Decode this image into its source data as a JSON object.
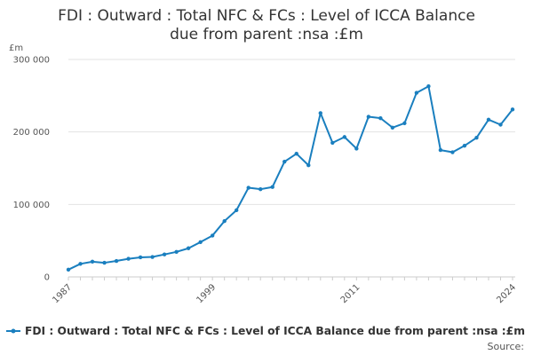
{
  "chart_data": {
    "type": "line",
    "title": "FDI : Outward : Total NFC & FCs : Level of ICCA Balance due from parent :nsa :£m",
    "title_lines": [
      "FDI : Outward : Total NFC & FCs : Level of ICCA Balance",
      "due from parent :nsa :£m"
    ],
    "ylabel": "£m",
    "xlabel": "",
    "ylim": [
      0,
      300000
    ],
    "y_ticks": [
      0,
      100000,
      200000,
      300000
    ],
    "y_tick_labels": [
      "0",
      "100 000",
      "200 000",
      "300 000"
    ],
    "xlim": [
      1987,
      2024
    ],
    "x_tick_labels": [
      "1987",
      "1999",
      "2011",
      "2024"
    ],
    "grid": "horizontal",
    "legend_position": "bottom",
    "series": [
      {
        "name": "FDI : Outward : Total NFC & FCs : Level of ICCA Balance due from parent :nsa :£m",
        "color": "#1a7fbf",
        "x": [
          1987,
          1988,
          1989,
          1990,
          1991,
          1992,
          1993,
          1994,
          1995,
          1996,
          1997,
          1998,
          1999,
          2000,
          2001,
          2002,
          2003,
          2004,
          2005,
          2006,
          2007,
          2008,
          2009,
          2010,
          2011,
          2012,
          2013,
          2014,
          2015,
          2016,
          2017,
          2018,
          2019,
          2020,
          2021,
          2022,
          2023,
          2024
        ],
        "values": [
          10000,
          18000,
          21000,
          19500,
          22000,
          25000,
          27000,
          27500,
          31000,
          34500,
          39500,
          48000,
          57000,
          77000,
          92000,
          123000,
          121000,
          124000,
          159000,
          170000,
          154000,
          226000,
          185000,
          193000,
          177000,
          221000,
          219000,
          206000,
          212000,
          254000,
          263000,
          175000,
          172000,
          181000,
          192000,
          217000,
          210000,
          231000
        ]
      }
    ],
    "source_label": "Source:"
  }
}
